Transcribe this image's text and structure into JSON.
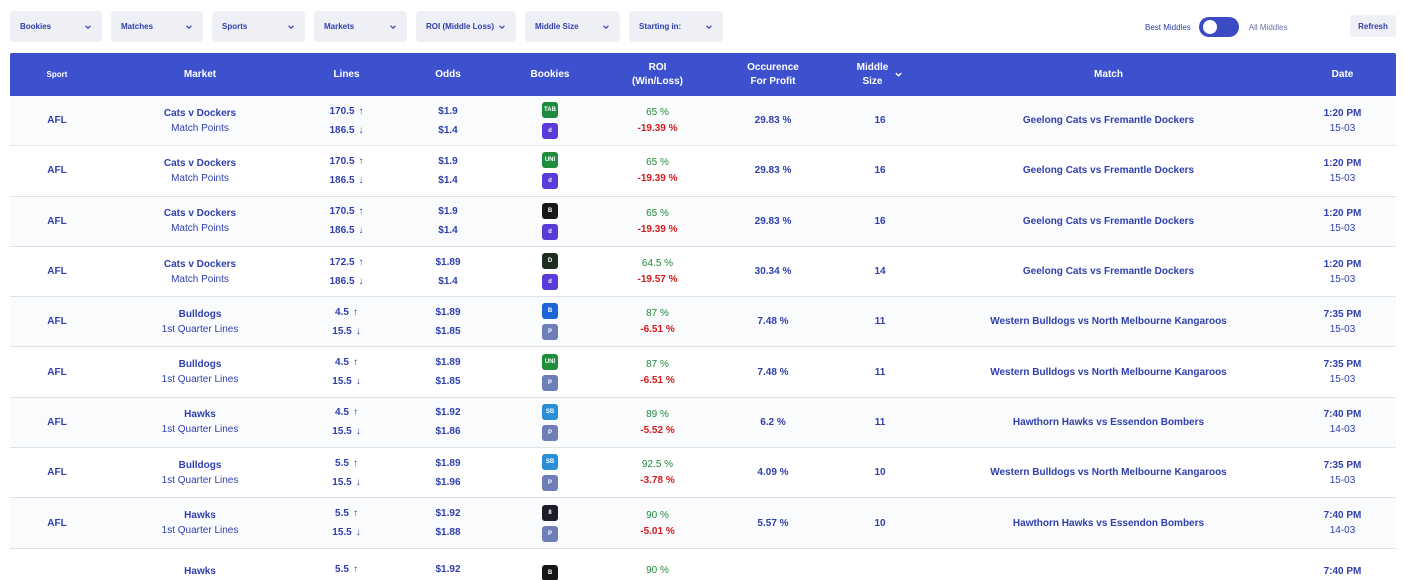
{
  "filters": [
    {
      "label": "Bookies"
    },
    {
      "label": "Matches"
    },
    {
      "label": "Sports"
    },
    {
      "label": "Markets"
    },
    {
      "label": "ROI (Middle Loss)"
    },
    {
      "label": "Middle Size"
    },
    {
      "label": "Starting in:"
    }
  ],
  "toggle": {
    "left_label": "Best Middles",
    "right_label": "All Middles"
  },
  "refresh_label": "Refresh",
  "headers": {
    "sport": "Sport",
    "market": "Market",
    "lines": "Lines",
    "odds": "Odds",
    "bookies": "Bookies",
    "roi_1": "ROI",
    "roi_2": "(Win/Loss)",
    "occ_1": "Occurence",
    "occ_2": "For Profit",
    "mid_1": "Middle",
    "mid_2": "Size",
    "match": "Match",
    "date": "Date"
  },
  "bookie_styles": {
    "tab": {
      "bg": "#1e8a3c",
      "text": "TAB"
    },
    "ladbrokes": {
      "bg": "#5b3bd8",
      "text": "d"
    },
    "unibet": {
      "bg": "#1f8f3e",
      "text": "UNI"
    },
    "betr": {
      "bg": "#161616",
      "text": "B"
    },
    "pointsbet": {
      "bg": "#1b1b2b",
      "text": "8"
    },
    "bluebet": {
      "bg": "#1a66d6",
      "text": "B"
    },
    "playup": {
      "bg": "#6e7fb8",
      "text": "P"
    },
    "sportsbet": {
      "bg": "#2a8fd6",
      "text": "SB"
    },
    "dabble": {
      "bg": "#1f2f1f",
      "text": "D"
    }
  },
  "rows": [
    {
      "sport": "AFL",
      "market_title": "Cats v Dockers",
      "market_sub": "Match Points",
      "line_top": "170.5",
      "line_bottom": "186.5",
      "odds_top": "$1.9",
      "odds_bottom": "$1.4",
      "bookie_top": "tab",
      "bookie_bottom": "ladbrokes",
      "roi_win": "65 %",
      "roi_loss": "-19.39 %",
      "occurrence": "29.83 %",
      "middle_size": "16",
      "match": "Geelong Cats vs Fremantle Dockers",
      "time": "1:20 PM",
      "day": "15-03"
    },
    {
      "sport": "AFL",
      "market_title": "Cats v Dockers",
      "market_sub": "Match Points",
      "line_top": "170.5",
      "line_bottom": "186.5",
      "odds_top": "$1.9",
      "odds_bottom": "$1.4",
      "bookie_top": "unibet",
      "bookie_bottom": "ladbrokes",
      "roi_win": "65 %",
      "roi_loss": "-19.39 %",
      "occurrence": "29.83 %",
      "middle_size": "16",
      "match": "Geelong Cats vs Fremantle Dockers",
      "time": "1:20 PM",
      "day": "15-03"
    },
    {
      "sport": "AFL",
      "market_title": "Cats v Dockers",
      "market_sub": "Match Points",
      "line_top": "170.5",
      "line_bottom": "186.5",
      "odds_top": "$1.9",
      "odds_bottom": "$1.4",
      "bookie_top": "betr",
      "bookie_bottom": "ladbrokes",
      "roi_win": "65 %",
      "roi_loss": "-19.39 %",
      "occurrence": "29.83 %",
      "middle_size": "16",
      "match": "Geelong Cats vs Fremantle Dockers",
      "time": "1:20 PM",
      "day": "15-03"
    },
    {
      "sport": "AFL",
      "market_title": "Cats v Dockers",
      "market_sub": "Match Points",
      "line_top": "172.5",
      "line_bottom": "186.5",
      "odds_top": "$1.89",
      "odds_bottom": "$1.4",
      "bookie_top": "dabble",
      "bookie_bottom": "ladbrokes",
      "roi_win": "64.5 %",
      "roi_loss": "-19.57 %",
      "occurrence": "30.34 %",
      "middle_size": "14",
      "match": "Geelong Cats vs Fremantle Dockers",
      "time": "1:20 PM",
      "day": "15-03"
    },
    {
      "sport": "AFL",
      "market_title": "Bulldogs",
      "market_sub": "1st Quarter Lines",
      "line_top": "4.5",
      "line_bottom": "15.5",
      "odds_top": "$1.89",
      "odds_bottom": "$1.85",
      "bookie_top": "bluebet",
      "bookie_bottom": "playup",
      "roi_win": "87 %",
      "roi_loss": "-6.51 %",
      "occurrence": "7.48 %",
      "middle_size": "11",
      "match": "Western Bulldogs vs North Melbourne Kangaroos",
      "time": "7:35 PM",
      "day": "15-03"
    },
    {
      "sport": "AFL",
      "market_title": "Bulldogs",
      "market_sub": "1st Quarter Lines",
      "line_top": "4.5",
      "line_bottom": "15.5",
      "odds_top": "$1.89",
      "odds_bottom": "$1.85",
      "bookie_top": "unibet",
      "bookie_bottom": "playup",
      "roi_win": "87 %",
      "roi_loss": "-6.51 %",
      "occurrence": "7.48 %",
      "middle_size": "11",
      "match": "Western Bulldogs vs North Melbourne Kangaroos",
      "time": "7:35 PM",
      "day": "15-03"
    },
    {
      "sport": "AFL",
      "market_title": "Hawks",
      "market_sub": "1st Quarter Lines",
      "line_top": "4.5",
      "line_bottom": "15.5",
      "odds_top": "$1.92",
      "odds_bottom": "$1.86",
      "bookie_top": "sportsbet",
      "bookie_bottom": "playup",
      "roi_win": "89 %",
      "roi_loss": "-5.52 %",
      "occurrence": "6.2 %",
      "middle_size": "11",
      "match": "Hawthorn Hawks vs Essendon Bombers",
      "time": "7:40 PM",
      "day": "14-03"
    },
    {
      "sport": "AFL",
      "market_title": "Bulldogs",
      "market_sub": "1st Quarter Lines",
      "line_top": "5.5",
      "line_bottom": "15.5",
      "odds_top": "$1.89",
      "odds_bottom": "$1.96",
      "bookie_top": "sportsbet",
      "bookie_bottom": "playup",
      "roi_win": "92.5 %",
      "roi_loss": "-3.78 %",
      "occurrence": "4.09 %",
      "middle_size": "10",
      "match": "Western Bulldogs vs North Melbourne Kangaroos",
      "time": "7:35 PM",
      "day": "15-03"
    },
    {
      "sport": "AFL",
      "market_title": "Hawks",
      "market_sub": "1st Quarter Lines",
      "line_top": "5.5",
      "line_bottom": "15.5",
      "odds_top": "$1.92",
      "odds_bottom": "$1.88",
      "bookie_top": "pointsbet",
      "bookie_bottom": "playup",
      "roi_win": "90 %",
      "roi_loss": "-5.01 %",
      "occurrence": "5.57 %",
      "middle_size": "10",
      "match": "Hawthorn Hawks vs Essendon Bombers",
      "time": "7:40 PM",
      "day": "14-03"
    },
    {
      "sport": "",
      "market_title": "Hawks",
      "market_sub": "",
      "line_top": "5.5",
      "line_bottom": "",
      "odds_top": "$1.92",
      "odds_bottom": "",
      "bookie_top": "betr",
      "bookie_bottom": "",
      "roi_win": "90 %",
      "roi_loss": "",
      "occurrence": "",
      "middle_size": "",
      "match": "",
      "time": "7:40 PM",
      "day": ""
    }
  ]
}
